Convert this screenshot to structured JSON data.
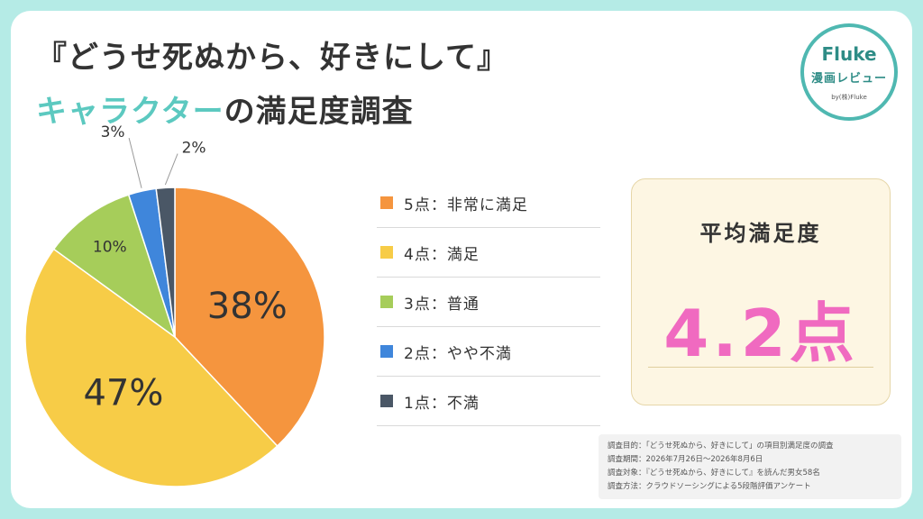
{
  "title": {
    "line1": "『どうせ死ぬから、好きにして』",
    "line2_accent": "キャラクター",
    "line2_rest": "の満足度調査"
  },
  "logo": {
    "name": "Fluke",
    "sub": "漫画レビュー",
    "by": "by(株)Fluke"
  },
  "chart_data": {
    "type": "pie",
    "start": "12 o'clock",
    "direction": "clockwise",
    "slices": [
      {
        "label": "5点：非常に満足",
        "value": 38,
        "display": "38%",
        "color": "#f5953e"
      },
      {
        "label": "4点：満足",
        "value": 47,
        "display": "47%",
        "color": "#f7cc47"
      },
      {
        "label": "3点：普通",
        "value": 10,
        "display": "10%",
        "color": "#a6cd5a"
      },
      {
        "label": "2点：やや不満",
        "value": 3,
        "display": "3%",
        "color": "#3f86db"
      },
      {
        "label": "1点：不満",
        "value": 2,
        "display": "2%",
        "color": "#4a5766"
      }
    ]
  },
  "average": {
    "title": "平均満足度",
    "value": "4.2点"
  },
  "notes": [
    "調査目的：「どうせ死ぬから、好きにして」の項目別満足度の調査",
    "調査期間：2026年7月26日～2026年8月6日",
    "調査対象：『どうせ死ぬから、好きにして』を読んだ男女58名",
    "調査方法：クラウドソーシングによる5段階評価アンケート"
  ]
}
